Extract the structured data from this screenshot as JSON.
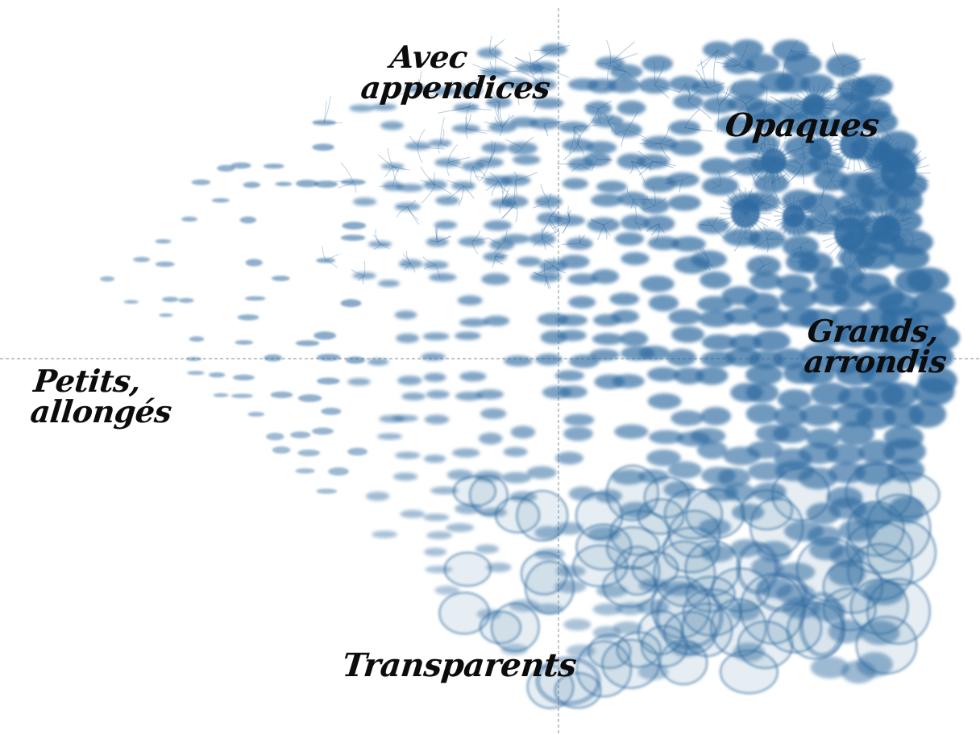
{
  "labels": {
    "top": [
      "Avec",
      "appendices"
    ],
    "top_right": "Opaques",
    "right": [
      "Grands,",
      "arrondis"
    ],
    "left": [
      "Petits,",
      "allongés"
    ],
    "bottom": "Transparents"
  },
  "colors": {
    "organism": "#2f6aa0",
    "organism_light": "#9dbcd8",
    "axis": "#9aa3ab",
    "text": "#0c0c0c"
  }
}
